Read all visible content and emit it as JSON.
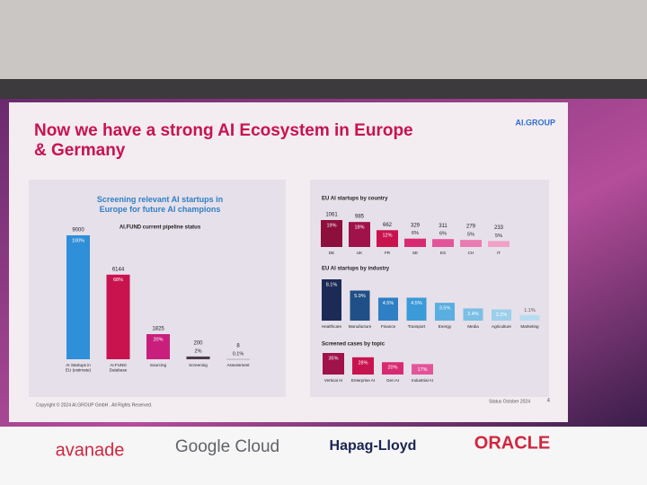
{
  "slide": {
    "title": "Now we have a strong AI Ecosystem in Europe & Germany",
    "brand": "AI.GROUP",
    "copyright": "Copyright © 2024 AI.GROUP GmbH . All Rights Reserved.",
    "status": "Status October 2024",
    "page": "4"
  },
  "logos": [
    "avanade",
    "Google Cloud",
    "Hapag-Lloyd",
    "ORACLE"
  ],
  "chart_data": [
    {
      "type": "bar",
      "title": "Screening relevant AI startups in Europe for future AI champions",
      "subtitle": "AI.FUND current pipeline status",
      "categories": [
        "AI Startups in EU (estimate)",
        "AI.FUND Database",
        "Sourcing",
        "Screening",
        "Assessment"
      ],
      "values": [
        9000,
        6144,
        1825,
        200,
        8
      ],
      "share_labels": [
        "100%",
        "68%",
        "20%",
        "2%",
        "0.1%"
      ],
      "colors": [
        "#2f8fd8",
        "#c8134f",
        "#c81f7c",
        "#4a3a4a",
        "#4a3a4a"
      ]
    },
    {
      "type": "bar",
      "title": "EU AI startups by country",
      "categories": [
        "DE",
        "UK",
        "FR",
        "SE",
        "ES",
        "CH",
        "IT"
      ],
      "values": [
        1061,
        985,
        662,
        329,
        311,
        279,
        233
      ],
      "share_labels": [
        "19%",
        "18%",
        "12%",
        "6%",
        "6%",
        "5%",
        "5%"
      ],
      "colors": [
        "#8c0f3c",
        "#a0124a",
        "#c8134f",
        "#d82a72",
        "#e3559a",
        "#ea7bb2",
        "#f0a2c8"
      ]
    },
    {
      "type": "bar",
      "title": "EU AI startups by industry",
      "categories": [
        "Healthcare",
        "Manufacture",
        "Finance",
        "Transport",
        "Energy",
        "Media",
        "Agriculture",
        "Marketing"
      ],
      "values": [
        8.1,
        5.9,
        4.5,
        4.5,
        3.5,
        2.4,
        2.2,
        1.1
      ],
      "value_labels": [
        "8.1%",
        "5.9%",
        "4.5%",
        "4.5%",
        "3.5%",
        "2.4%",
        "2.2%",
        "1.1%"
      ],
      "colors": [
        "#1c2b55",
        "#1f4f86",
        "#2f7fc4",
        "#3b9ad8",
        "#5aaee0",
        "#7cbfe6",
        "#9ccfec",
        "#b7dcf1"
      ]
    },
    {
      "type": "bar",
      "title": "Screened cases by topic",
      "categories": [
        "Vertical AI",
        "Enterprise AI",
        "Gen AI",
        "Industrial AI"
      ],
      "values": [
        35,
        28,
        20,
        17
      ],
      "value_labels": [
        "35%",
        "28%",
        "20%",
        "17%"
      ],
      "colors": [
        "#a0124a",
        "#c8134f",
        "#d82a72",
        "#e3559a"
      ]
    }
  ]
}
